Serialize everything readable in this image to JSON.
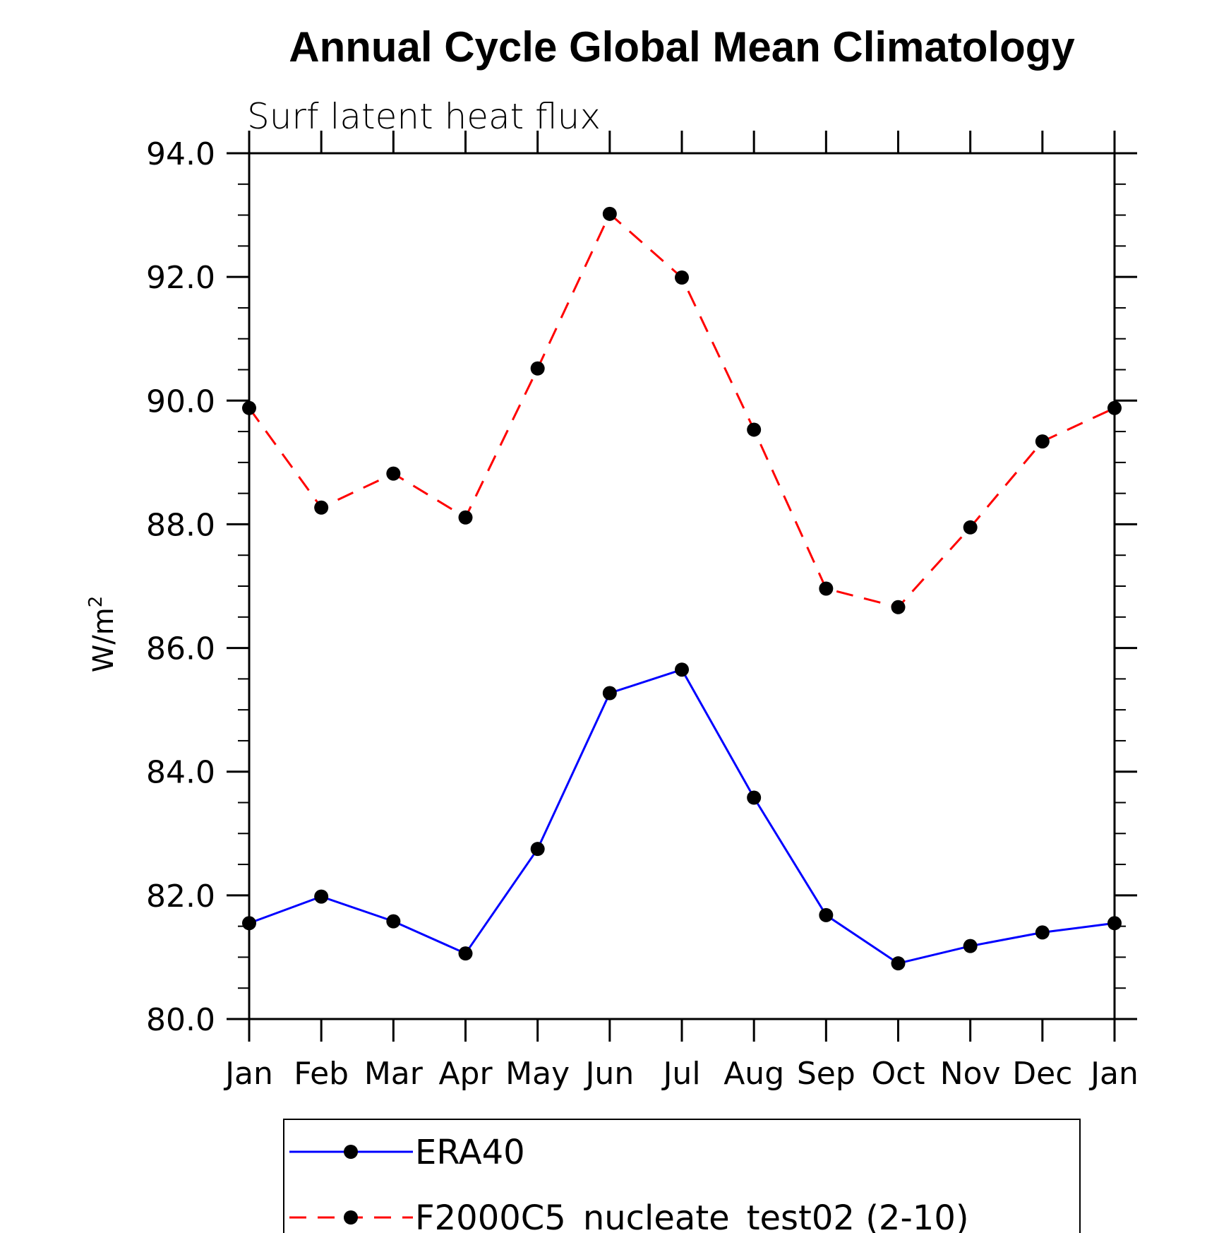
{
  "chart_data": {
    "type": "line",
    "title": "Annual Cycle Global Mean Climatology",
    "subtitle": "Surf latent heat flux",
    "xlabel": "",
    "ylabel": "W/m",
    "ylabel_sup": "2",
    "categories": [
      "Jan",
      "Feb",
      "Mar",
      "Apr",
      "May",
      "Jun",
      "Jul",
      "Aug",
      "Sep",
      "Oct",
      "Nov",
      "Dec",
      "Jan"
    ],
    "ylim": [
      80.0,
      94.0
    ],
    "yticks": [
      "80.0",
      "82.0",
      "84.0",
      "86.0",
      "88.0",
      "90.0",
      "92.0",
      "94.0"
    ],
    "grid": false,
    "legend_position": "bottom",
    "series": [
      {
        "name": "ERA40",
        "color": "#0000ff",
        "dash": "solid",
        "values": [
          81.55,
          81.98,
          81.58,
          81.06,
          82.75,
          85.27,
          85.65,
          83.58,
          81.68,
          80.9,
          81.18,
          81.4,
          81.55
        ]
      },
      {
        "name": "F2000C5_nucleate_test02 (2-10)",
        "color": "#ff0000",
        "dash": "dashed",
        "values": [
          89.88,
          88.27,
          88.82,
          88.11,
          90.52,
          93.02,
          91.99,
          89.53,
          86.96,
          86.66,
          87.95,
          89.34,
          89.88
        ]
      }
    ]
  }
}
